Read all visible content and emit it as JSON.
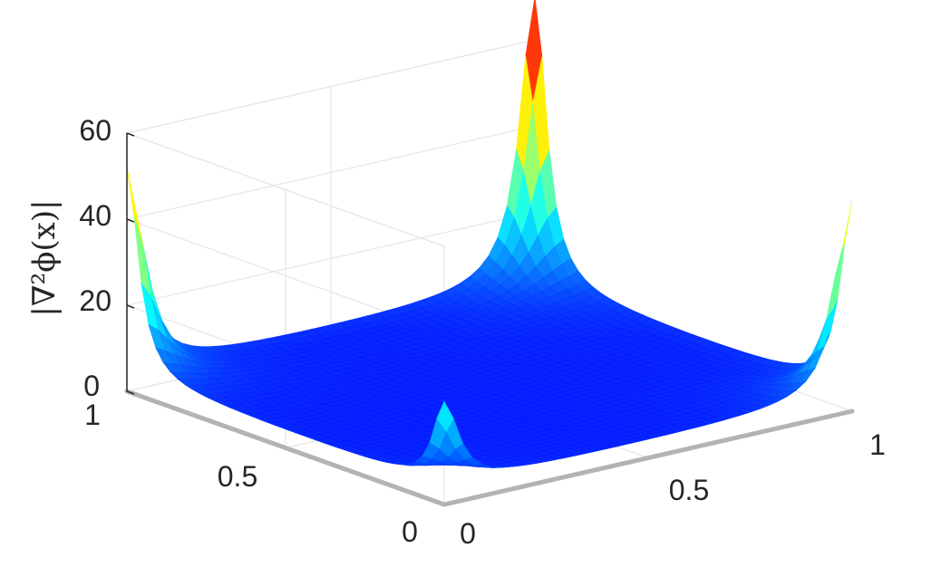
{
  "chart_data": {
    "type": "surface",
    "zlabel": "|∇²ϕ(x)|",
    "xlabel": "",
    "ylabel": "",
    "xlim": [
      0,
      1
    ],
    "ylim": [
      0,
      1
    ],
    "zlim": [
      0,
      60
    ],
    "x_ticks": [
      "0",
      "0.5",
      "1"
    ],
    "y_ticks": [
      "0",
      "0.5",
      "1"
    ],
    "z_ticks": [
      "0",
      "20",
      "40",
      "60"
    ],
    "grid": true,
    "colormap": "jet",
    "corner_values": {
      "x0_y0": 20,
      "x1_y0": 45,
      "x1_y1": 68,
      "x0_y1": 48
    },
    "floor_value": 2.5
  }
}
